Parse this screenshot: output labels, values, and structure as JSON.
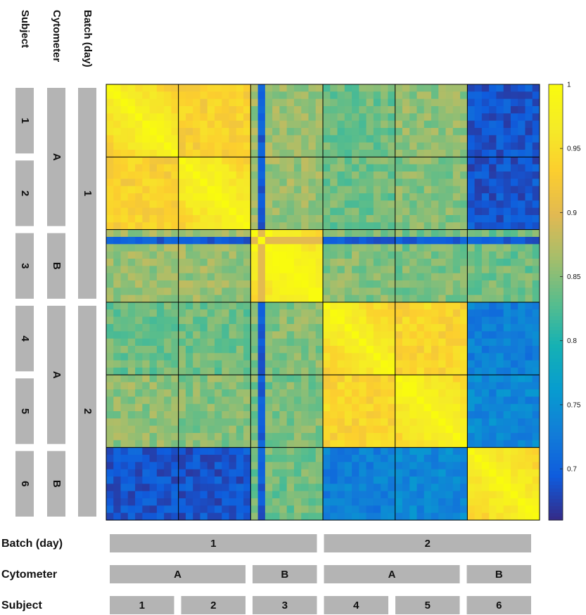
{
  "chart_data": {
    "type": "heatmap",
    "colormap": "parula",
    "color_range": [
      0.66,
      1.0
    ],
    "colorbar": {
      "ticks": [
        0.7,
        0.75,
        0.8,
        0.85,
        0.9,
        0.95,
        1
      ],
      "tick_labels": [
        "0.7",
        "0.75",
        "0.8",
        "0.85",
        "0.9",
        "0.95",
        "1"
      ]
    },
    "groups": [
      "1",
      "2",
      "3",
      "4",
      "5",
      "6"
    ],
    "samples_per_group": [
      10,
      10,
      10,
      10,
      10,
      10
    ],
    "outlier_sample_index": 21,
    "block_mean": [
      [
        0.955,
        0.935,
        0.86,
        0.84,
        0.855,
        0.69
      ],
      [
        0.935,
        0.96,
        0.86,
        0.84,
        0.85,
        0.69
      ],
      [
        0.86,
        0.86,
        0.97,
        0.85,
        0.845,
        0.84
      ],
      [
        0.84,
        0.84,
        0.85,
        0.955,
        0.94,
        0.73
      ],
      [
        0.855,
        0.85,
        0.845,
        0.94,
        0.96,
        0.74
      ],
      [
        0.69,
        0.69,
        0.84,
        0.73,
        0.74,
        0.955
      ]
    ],
    "axis_rows": [
      {
        "name": "Batch (day)",
        "segments": [
          {
            "label": "1",
            "groups": [
              1,
              3
            ]
          },
          {
            "label": "2",
            "groups": [
              4,
              6
            ]
          }
        ]
      },
      {
        "name": "Cytometer",
        "segments": [
          {
            "label": "A",
            "groups": [
              1,
              2
            ]
          },
          {
            "label": "B",
            "groups": [
              3,
              3
            ]
          },
          {
            "label": "A",
            "groups": [
              4,
              5
            ]
          },
          {
            "label": "B",
            "groups": [
              6,
              6
            ]
          }
        ]
      },
      {
        "name": "Subject",
        "segments": [
          {
            "label": "1",
            "groups": [
              1,
              1
            ]
          },
          {
            "label": "2",
            "groups": [
              2,
              2
            ]
          },
          {
            "label": "3",
            "groups": [
              3,
              3
            ]
          },
          {
            "label": "4",
            "groups": [
              4,
              4
            ]
          },
          {
            "label": "5",
            "groups": [
              5,
              5
            ]
          },
          {
            "label": "6",
            "groups": [
              6,
              6
            ]
          }
        ]
      }
    ]
  }
}
